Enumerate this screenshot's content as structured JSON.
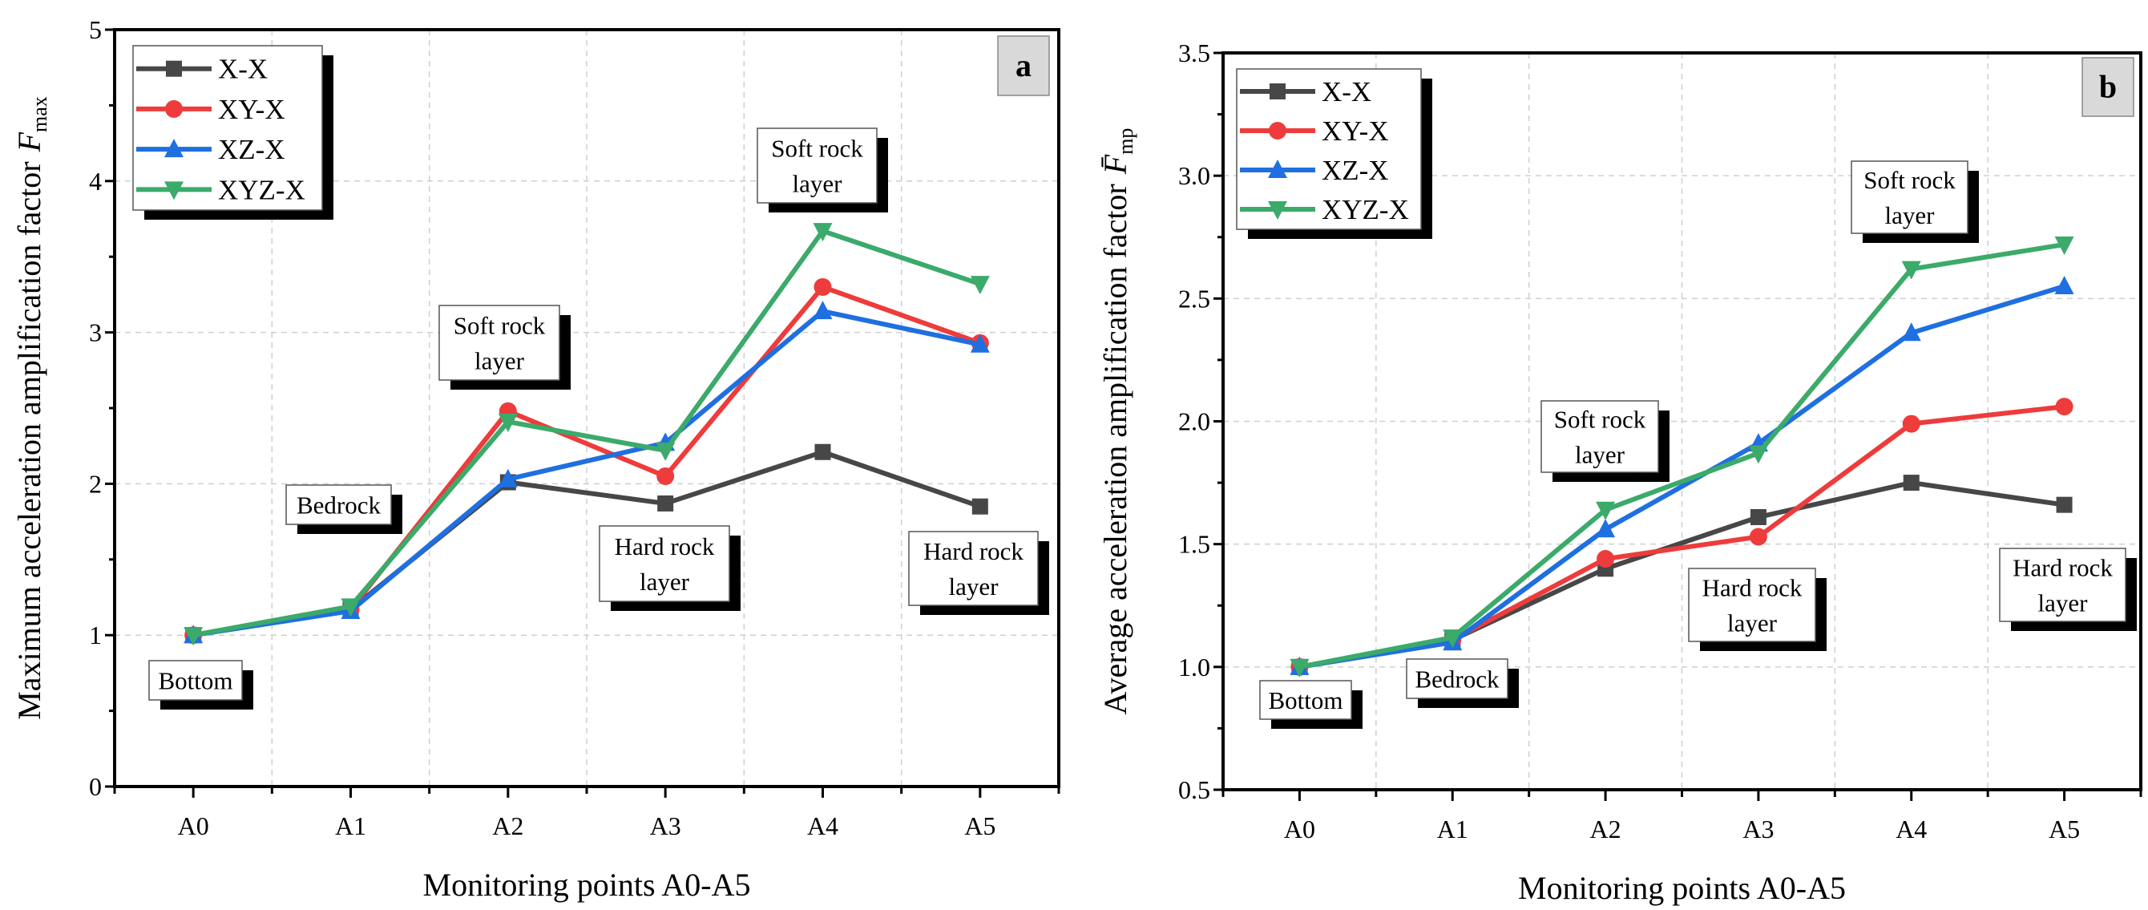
{
  "chart_data": [
    {
      "type": "line",
      "panel_label": "a",
      "title": "",
      "xlabel": "Monitoring points A0-A5",
      "ylabel": "Maximum acceleration amplification factor",
      "ylabel_symbol": "F",
      "ylabel_subscript": "max",
      "categories": [
        "A0",
        "A1",
        "A2",
        "A3",
        "A4",
        "A5"
      ],
      "ylim": [
        0,
        5
      ],
      "yticks": [
        "0",
        "1",
        "2",
        "3",
        "4",
        "5"
      ],
      "ytick_values": [
        0,
        1,
        2,
        3,
        4,
        5
      ],
      "grid": true,
      "legend_position": "top-left",
      "series": [
        {
          "name": "X-X",
          "color": "#474747",
          "marker": "square",
          "values": [
            1.0,
            1.17,
            2.01,
            1.87,
            2.21,
            1.85
          ]
        },
        {
          "name": "XY-X",
          "color": "#EE3B3B",
          "marker": "circle",
          "values": [
            1.0,
            1.17,
            2.48,
            2.05,
            3.3,
            2.93
          ]
        },
        {
          "name": "XZ-X",
          "color": "#1F6FE0",
          "marker": "triangle-up",
          "values": [
            1.0,
            1.16,
            2.03,
            2.27,
            3.14,
            2.92
          ]
        },
        {
          "name": "XYZ-X",
          "color": "#3BAA6A",
          "marker": "triangle-down",
          "values": [
            1.0,
            1.19,
            2.41,
            2.22,
            3.67,
            3.32
          ]
        }
      ],
      "annotations": [
        {
          "lines": [
            "Bottom"
          ]
        },
        {
          "lines": [
            "Bedrock"
          ]
        },
        {
          "lines": [
            "Soft rock",
            "layer"
          ]
        },
        {
          "lines": [
            "Hard rock",
            "layer"
          ]
        },
        {
          "lines": [
            "Soft rock",
            "layer"
          ]
        },
        {
          "lines": [
            "Hard rock",
            "layer"
          ]
        }
      ]
    },
    {
      "type": "line",
      "panel_label": "b",
      "title": "",
      "xlabel": "Monitoring points A0-A5",
      "ylabel": "Average acceleration amplification factor",
      "ylabel_symbol": "F̄",
      "ylabel_subscript": "mp",
      "categories": [
        "A0",
        "A1",
        "A2",
        "A3",
        "A4",
        "A5"
      ],
      "ylim": [
        0.5,
        3.5
      ],
      "yticks": [
        "0.5",
        "1.0",
        "1.5",
        "2.0",
        "2.5",
        "3.0",
        "3.5"
      ],
      "ytick_values": [
        0.5,
        1.0,
        1.5,
        2.0,
        2.5,
        3.0,
        3.5
      ],
      "grid": true,
      "legend_position": "top-left",
      "series": [
        {
          "name": "X-X",
          "color": "#474747",
          "marker": "square",
          "values": [
            1.0,
            1.11,
            1.4,
            1.61,
            1.75,
            1.66
          ]
        },
        {
          "name": "XY-X",
          "color": "#EE3B3B",
          "marker": "circle",
          "values": [
            1.0,
            1.11,
            1.44,
            1.53,
            1.99,
            2.06
          ]
        },
        {
          "name": "XZ-X",
          "color": "#1F6FE0",
          "marker": "triangle-up",
          "values": [
            1.0,
            1.1,
            1.56,
            1.91,
            2.36,
            2.55
          ]
        },
        {
          "name": "XYZ-X",
          "color": "#3BAA6A",
          "marker": "triangle-down",
          "values": [
            1.0,
            1.12,
            1.64,
            1.87,
            2.62,
            2.72
          ]
        }
      ],
      "annotations": [
        {
          "lines": [
            "Bottom"
          ]
        },
        {
          "lines": [
            "Bedrock"
          ]
        },
        {
          "lines": [
            "Soft rock",
            "layer"
          ]
        },
        {
          "lines": [
            "Hard rock",
            "layer"
          ]
        },
        {
          "lines": [
            "Soft rock",
            "layer"
          ]
        },
        {
          "lines": [
            "Hard rock",
            "layer"
          ]
        }
      ]
    }
  ]
}
